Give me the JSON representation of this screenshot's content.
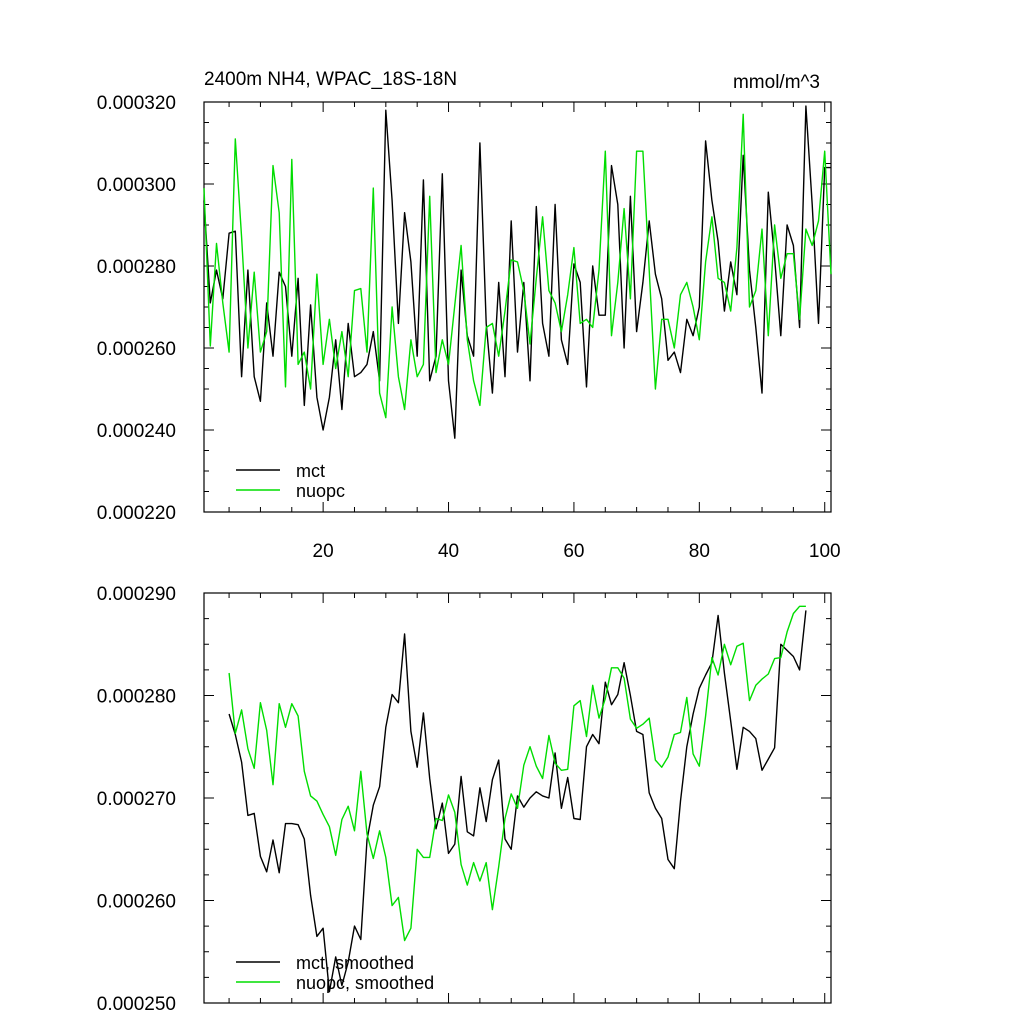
{
  "chart_data": [
    {
      "type": "line",
      "title": "2400m NH4, WPAC_18S-18N",
      "units": "mmol/m^3",
      "ylim": [
        0.00022,
        0.00032
      ],
      "yticks": [
        0.00022,
        0.00024,
        0.00026,
        0.00028,
        0.0003,
        0.00032
      ],
      "ytick_labels": [
        "0.000220",
        "0.000240",
        "0.000260",
        "0.000280",
        "0.000300",
        "0.000320"
      ],
      "xlim": [
        1,
        101
      ],
      "xticks": [
        20,
        40,
        60,
        80,
        100
      ],
      "xtick_labels": [
        "20",
        "40",
        "60",
        "80",
        "100"
      ],
      "legend": "bottom-left",
      "series": [
        {
          "name": "mct",
          "color": "#000000",
          "x": [
            1,
            2,
            3,
            4,
            5,
            6,
            7,
            8,
            9,
            10,
            11,
            12,
            13,
            14,
            15,
            16,
            17,
            18,
            19,
            20,
            21,
            22,
            23,
            24,
            25,
            26,
            27,
            28,
            29,
            30,
            31,
            32,
            33,
            34,
            35,
            36,
            37,
            38,
            39,
            40,
            41,
            42,
            43,
            44,
            45,
            46,
            47,
            48,
            49,
            50,
            51,
            52,
            53,
            54,
            55,
            56,
            57,
            58,
            59,
            60,
            61,
            62,
            63,
            64,
            65,
            66,
            67,
            68,
            69,
            70,
            71,
            72,
            73,
            74,
            75,
            76,
            77,
            78,
            79,
            80,
            81,
            82,
            83,
            84,
            85,
            86,
            87,
            88,
            89,
            90,
            91,
            92,
            93,
            94,
            95,
            96,
            97,
            98,
            99,
            100,
            101
          ],
          "values": [
            0.000296,
            0.000271,
            0.000279,
            0.000272,
            0.000288,
            0.0002885,
            0.000253,
            0.000279,
            0.000253,
            0.000247,
            0.000271,
            0.000258,
            0.0002785,
            0.000275,
            0.000258,
            0.000277,
            0.000246,
            0.0002705,
            0.000248,
            0.00024,
            0.000248,
            0.000262,
            0.000245,
            0.000266,
            0.000253,
            0.000254,
            0.000256,
            0.000264,
            0.000252,
            0.000318,
            0.000296,
            0.000266,
            0.000293,
            0.000281,
            0.000258,
            0.000301,
            0.000252,
            0.000258,
            0.0003025,
            0.000252,
            0.000238,
            0.000279,
            0.000263,
            0.000258,
            0.00031,
            0.000266,
            0.000249,
            0.000276,
            0.000253,
            0.000291,
            0.000259,
            0.000276,
            0.000252,
            0.0002945,
            0.000266,
            0.000258,
            0.000295,
            0.000262,
            0.000256,
            0.0002805,
            0.000276,
            0.0002505,
            0.00028,
            0.000268,
            0.000268,
            0.0003045,
            0.000295,
            0.00026,
            0.000297,
            0.000264,
            0.000276,
            0.000291,
            0.000278,
            0.000272,
            0.000257,
            0.000259,
            0.000254,
            0.000267,
            0.000263,
            0.00027,
            0.0003105,
            0.000296,
            0.000286,
            0.000269,
            0.000281,
            0.000273,
            0.000307,
            0.000279,
            0.000265,
            0.000249,
            0.000298,
            0.000282,
            0.000263,
            0.00029,
            0.000285,
            0.000265,
            0.000319,
            0.000295,
            0.000266,
            0.000304,
            0.000304
          ]
        },
        {
          "name": "nuopc",
          "color": "#00dd00",
          "x": [
            1,
            2,
            3,
            4,
            5,
            6,
            7,
            8,
            9,
            10,
            11,
            12,
            13,
            14,
            15,
            16,
            17,
            18,
            19,
            20,
            21,
            22,
            23,
            24,
            25,
            26,
            27,
            28,
            29,
            30,
            31,
            32,
            33,
            34,
            35,
            36,
            37,
            38,
            39,
            40,
            41,
            42,
            43,
            44,
            45,
            46,
            47,
            48,
            49,
            50,
            51,
            52,
            53,
            54,
            55,
            56,
            57,
            58,
            59,
            60,
            61,
            62,
            63,
            64,
            65,
            66,
            67,
            68,
            69,
            70,
            71,
            72,
            73,
            74,
            75,
            76,
            77,
            78,
            79,
            80,
            81,
            82,
            83,
            84,
            85,
            86,
            87,
            88,
            89,
            90,
            91,
            92,
            93,
            94,
            95,
            96,
            97,
            98,
            99,
            100,
            101
          ],
          "values": [
            0.000299,
            0.0002605,
            0.0002855,
            0.000271,
            0.000259,
            0.000311,
            0.000287,
            0.00026,
            0.0002785,
            0.000259,
            0.000264,
            0.0003045,
            0.000293,
            0.0002505,
            0.000306,
            0.000256,
            0.000259,
            0.00025,
            0.000278,
            0.000256,
            0.000267,
            0.000255,
            0.000264,
            0.000253,
            0.000274,
            0.0002745,
            0.000259,
            0.000299,
            0.000249,
            0.000243,
            0.00027,
            0.000253,
            0.000245,
            0.000262,
            0.000253,
            0.000256,
            0.000297,
            0.000254,
            0.000262,
            0.000256,
            0.0002705,
            0.000285,
            0.000262,
            0.000252,
            0.000246,
            0.000265,
            0.000266,
            0.000258,
            0.000269,
            0.0002815,
            0.000281,
            0.000274,
            0.000261,
            0.000277,
            0.000292,
            0.000274,
            0.000271,
            0.000264,
            0.000273,
            0.0002845,
            0.000266,
            0.000267,
            0.000265,
            0.000279,
            0.000308,
            0.000263,
            0.000276,
            0.000294,
            0.000272,
            0.000308,
            0.000308,
            0.000279,
            0.00025,
            0.000267,
            0.000267,
            0.00026,
            0.000273,
            0.000276,
            0.00027,
            0.000262,
            0.000281,
            0.000292,
            0.000277,
            0.000276,
            0.000269,
            0.0002845,
            0.000317,
            0.00027,
            0.000274,
            0.000289,
            0.000263,
            0.00029,
            0.000277,
            0.000283,
            0.000283,
            0.000267,
            0.000289,
            0.000285,
            0.000291,
            0.000308,
            0.000278
          ]
        }
      ]
    },
    {
      "type": "line",
      "title": "",
      "ylim": [
        0.00025,
        0.00029
      ],
      "yticks": [
        0.00025,
        0.00026,
        0.00027,
        0.00028,
        0.00029
      ],
      "ytick_labels": [
        "0.000250",
        "0.000260",
        "0.000270",
        "0.000280",
        "0.000290"
      ],
      "xlim": [
        1,
        101
      ],
      "xticks": [
        20,
        40,
        60,
        80,
        100
      ],
      "xtick_labels": [],
      "legend": "bottom-left",
      "series": [
        {
          "name": "mct, smoothed",
          "color": "#000000",
          "x": [
            5,
            6,
            7,
            8,
            9,
            10,
            11,
            12,
            13,
            14,
            15,
            16,
            17,
            18,
            19,
            20,
            21,
            22,
            23,
            24,
            25,
            26,
            27,
            28,
            29,
            30,
            31,
            32,
            33,
            34,
            35,
            36,
            37,
            38,
            39,
            40,
            41,
            42,
            43,
            44,
            45,
            46,
            47,
            48,
            49,
            50,
            51,
            52,
            53,
            54,
            55,
            56,
            57,
            58,
            59,
            60,
            61,
            62,
            63,
            64,
            65,
            66,
            67,
            68,
            69,
            70,
            71,
            72,
            73,
            74,
            75,
            76,
            77,
            78,
            79,
            80,
            81,
            82,
            83,
            84,
            85,
            86,
            87,
            88,
            89,
            90,
            91,
            92,
            93,
            94,
            95,
            96,
            97
          ],
          "values": [
            0.0002782,
            0.0002762,
            0.0002735,
            0.0002683,
            0.0002685,
            0.0002643,
            0.0002628,
            0.0002659,
            0.0002627,
            0.0002675,
            0.0002675,
            0.0002674,
            0.000266,
            0.0002605,
            0.0002565,
            0.0002573,
            0.0002511,
            0.0002545,
            0.0002517,
            0.000254,
            0.0002575,
            0.0002562,
            0.0002659,
            0.0002693,
            0.0002711,
            0.0002769,
            0.0002801,
            0.0002793,
            0.000286,
            0.0002765,
            0.000273,
            0.0002783,
            0.0002719,
            0.000267,
            0.0002695,
            0.0002646,
            0.0002655,
            0.0002721,
            0.0002667,
            0.0002663,
            0.000271,
            0.0002677,
            0.0002718,
            0.0002737,
            0.000266,
            0.000265,
            0.0002702,
            0.0002691,
            0.00027,
            0.0002706,
            0.0002702,
            0.00027,
            0.0002744,
            0.000269,
            0.000272,
            0.000268,
            0.0002679,
            0.000275,
            0.0002762,
            0.0002753,
            0.0002813,
            0.0002791,
            0.0002801,
            0.0002832,
            0.00028,
            0.0002765,
            0.0002762,
            0.0002705,
            0.000269,
            0.000268,
            0.000264,
            0.0002631,
            0.0002697,
            0.000275,
            0.0002782,
            0.0002807,
            0.000282,
            0.0002832,
            0.0002878,
            0.0002822,
            0.0002775,
            0.0002728,
            0.0002769,
            0.0002765,
            0.0002758,
            0.0002727,
            0.0002738,
            0.0002749,
            0.000285,
            0.0002844,
            0.0002838,
            0.0002825,
            0.0002883
          ]
        },
        {
          "name": "nuopc, smoothed",
          "color": "#00dd00",
          "x": [
            5,
            6,
            7,
            8,
            9,
            10,
            11,
            12,
            13,
            14,
            15,
            16,
            17,
            18,
            19,
            20,
            21,
            22,
            23,
            24,
            25,
            26,
            27,
            28,
            29,
            30,
            31,
            32,
            33,
            34,
            35,
            36,
            37,
            38,
            39,
            40,
            41,
            42,
            43,
            44,
            45,
            46,
            47,
            48,
            49,
            50,
            51,
            52,
            53,
            54,
            55,
            56,
            57,
            58,
            59,
            60,
            61,
            62,
            63,
            64,
            65,
            66,
            67,
            68,
            69,
            70,
            71,
            72,
            73,
            74,
            75,
            76,
            77,
            78,
            79,
            80,
            81,
            82,
            83,
            84,
            85,
            86,
            87,
            88,
            89,
            90,
            91,
            92,
            93,
            94,
            95,
            96,
            97
          ],
          "values": [
            0.0002822,
            0.0002763,
            0.0002786,
            0.0002748,
            0.0002729,
            0.0002793,
            0.0002766,
            0.0002713,
            0.0002792,
            0.0002769,
            0.0002792,
            0.000278,
            0.0002726,
            0.0002702,
            0.0002697,
            0.0002684,
            0.0002672,
            0.0002644,
            0.0002679,
            0.0002692,
            0.0002668,
            0.0002726,
            0.0002665,
            0.0002641,
            0.0002668,
            0.0002642,
            0.0002595,
            0.0002603,
            0.0002561,
            0.0002573,
            0.000265,
            0.0002642,
            0.0002642,
            0.000268,
            0.0002678,
            0.0002703,
            0.0002686,
            0.0002635,
            0.0002615,
            0.0002637,
            0.0002619,
            0.0002637,
            0.0002591,
            0.0002633,
            0.000268,
            0.0002704,
            0.000269,
            0.0002732,
            0.000275,
            0.0002731,
            0.0002719,
            0.0002761,
            0.0002734,
            0.0002727,
            0.0002728,
            0.000279,
            0.0002795,
            0.000276,
            0.000281,
            0.0002778,
            0.0002797,
            0.0002827,
            0.0002827,
            0.0002817,
            0.0002777,
            0.0002768,
            0.0002772,
            0.0002778,
            0.0002737,
            0.000273,
            0.000274,
            0.0002762,
            0.0002764,
            0.0002798,
            0.0002743,
            0.0002731,
            0.000278,
            0.0002837,
            0.000282,
            0.000285,
            0.000283,
            0.0002848,
            0.0002851,
            0.0002795,
            0.000281,
            0.0002816,
            0.0002821,
            0.0002836,
            0.0002837,
            0.0002862,
            0.000288,
            0.0002887,
            0.0002887
          ]
        }
      ]
    }
  ]
}
